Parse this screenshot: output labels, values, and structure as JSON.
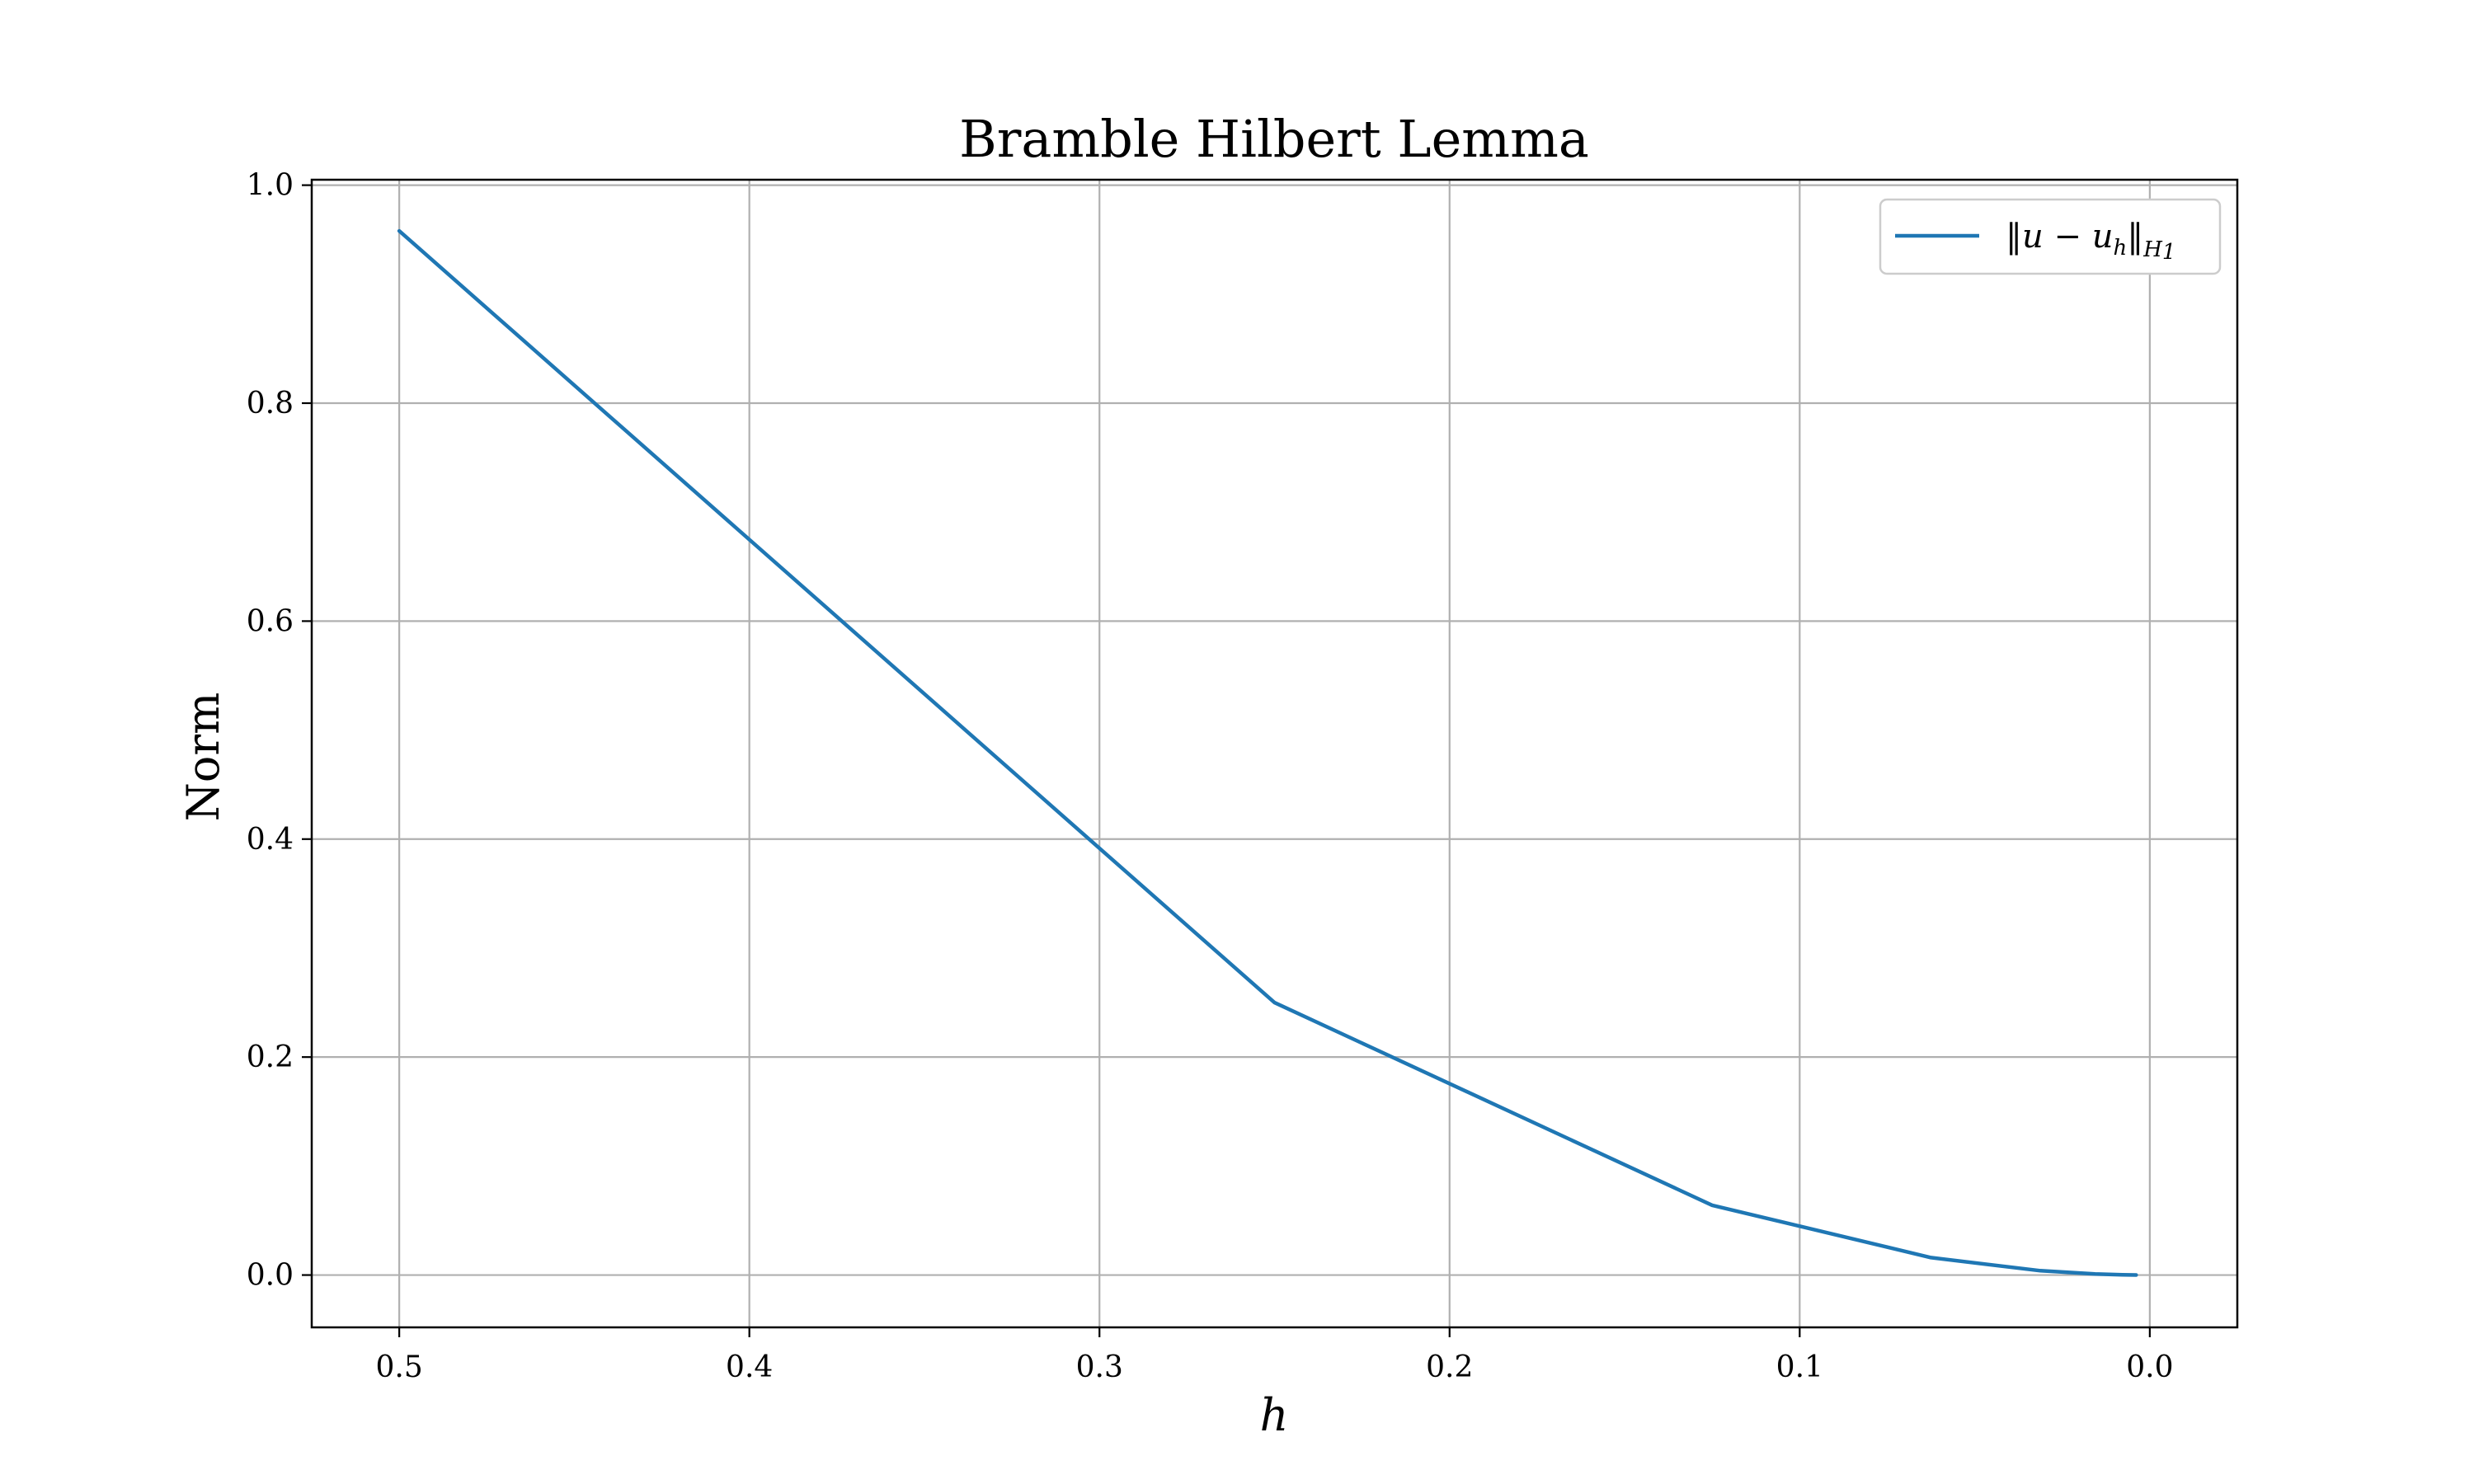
{
  "chart_data": {
    "type": "line",
    "title": "Bramble Hilbert Lemma",
    "xlabel": "h",
    "ylabel": "Norm",
    "x_reversed": true,
    "xlim": [
      0.525,
      -0.025
    ],
    "ylim": [
      -0.048,
      1.005
    ],
    "x_ticks": [
      0.5,
      0.4,
      0.3,
      0.2,
      0.1,
      0.0
    ],
    "x_tick_labels": [
      "0.5",
      "0.4",
      "0.3",
      "0.2",
      "0.1",
      "0.0"
    ],
    "y_ticks": [
      0.0,
      0.2,
      0.4,
      0.6,
      0.8,
      1.0
    ],
    "y_tick_labels": [
      "0.0",
      "0.2",
      "0.4",
      "0.6",
      "0.8",
      "1.0"
    ],
    "grid": true,
    "legend_position": "top-right",
    "series": [
      {
        "name": "‖u − u_h‖_{H_1}",
        "legend_main": "‖u − u",
        "legend_sub1": "h",
        "legend_mid": "‖",
        "legend_sub2": "H",
        "legend_sub2b": "1",
        "color": "#1f77b4",
        "x": [
          0.5,
          0.25,
          0.125,
          0.0625,
          0.03125,
          0.015625,
          0.0078125,
          0.00390625
        ],
        "y": [
          0.958,
          0.25,
          0.064,
          0.016,
          0.004,
          0.001,
          0.0002,
          5e-05
        ]
      }
    ]
  }
}
